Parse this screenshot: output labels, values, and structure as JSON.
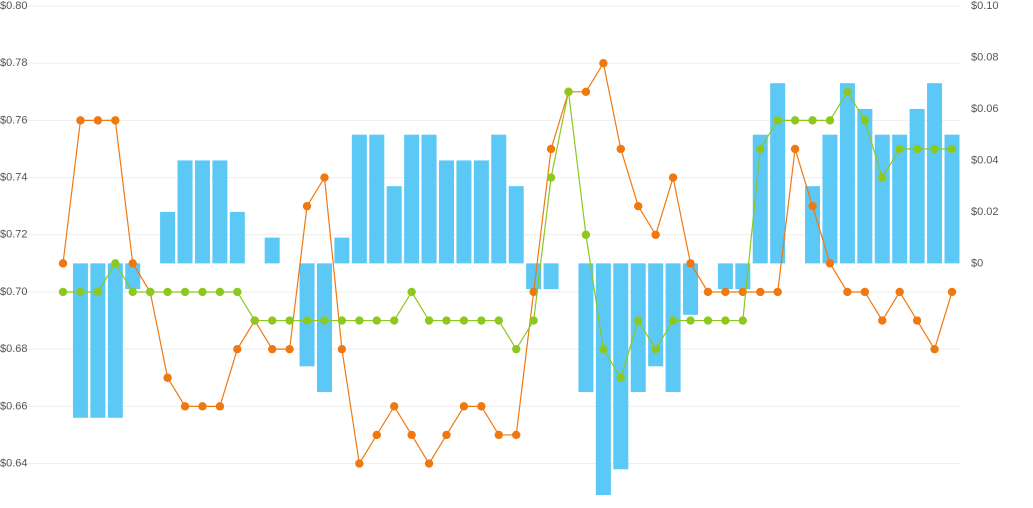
{
  "chart_data": {
    "type": "combo",
    "categories": [
      null,
      null,
      null,
      null,
      null,
      null,
      null,
      null,
      null,
      null,
      null,
      null,
      null,
      null,
      null,
      null,
      null,
      null,
      null,
      null,
      null,
      null,
      null,
      null,
      null,
      null,
      null,
      null,
      null,
      null,
      null,
      null,
      null,
      null,
      null,
      null,
      null,
      null,
      null,
      null,
      null,
      null,
      null,
      null,
      null,
      null,
      null,
      null,
      null,
      null,
      null,
      null
    ],
    "ylim": [
      0.629,
      0.8
    ],
    "yticks": [
      {
        "value": 0.64,
        "label": "$0.64"
      },
      {
        "value": 0.66,
        "label": "$0.66"
      },
      {
        "value": 0.68,
        "label": "$0.68"
      },
      {
        "value": 0.7,
        "label": "$0.70"
      },
      {
        "value": 0.72,
        "label": "$0.72"
      },
      {
        "value": 0.74,
        "label": "$0.74"
      },
      {
        "value": 0.76,
        "label": "$0.76"
      },
      {
        "value": 0.78,
        "label": "$0.78"
      },
      {
        "value": 0.8,
        "label": "$0.80"
      }
    ],
    "y2lim": [
      -0.09,
      0.1
    ],
    "y2ticks": [
      {
        "value": 0,
        "label": "$0"
      },
      {
        "value": 0.02,
        "label": "$0.02"
      },
      {
        "value": 0.04,
        "label": "$0.04"
      },
      {
        "value": 0.06,
        "label": "$0.06"
      },
      {
        "value": 0.08,
        "label": "$0.08"
      },
      {
        "value": 0.1,
        "label": "$0.10"
      }
    ],
    "grid": true,
    "series": [
      {
        "type": "bar",
        "axis": "y2",
        "color": "#5bc8f5",
        "values": [
          0,
          -0.06,
          -0.06,
          -0.06,
          -0.01,
          0,
          0.02,
          0.04,
          0.04,
          0.04,
          0.02,
          0,
          0.01,
          0,
          -0.04,
          -0.05,
          0.01,
          0.05,
          0.05,
          0.03,
          0.05,
          0.05,
          0.04,
          0.04,
          0.04,
          0.05,
          0.03,
          -0.01,
          -0.01,
          0,
          -0.05,
          -0.09,
          -0.08,
          -0.05,
          -0.04,
          -0.05,
          -0.02,
          0,
          -0.01,
          -0.01,
          0.05,
          0.07,
          0,
          0.03,
          0.05,
          0.07,
          0.06,
          0.05,
          0.05,
          0.06,
          0.07,
          0.05
        ]
      },
      {
        "type": "line",
        "color": "#f07810",
        "values": [
          0.71,
          0.76,
          0.76,
          0.76,
          0.71,
          0.7,
          0.67,
          0.66,
          0.66,
          0.66,
          0.68,
          0.69,
          0.68,
          0.68,
          0.73,
          0.74,
          0.68,
          0.64,
          0.65,
          0.66,
          0.65,
          0.64,
          0.65,
          0.66,
          0.66,
          0.65,
          0.65,
          0.7,
          0.75,
          0.77,
          0.77,
          0.78,
          0.75,
          0.73,
          0.72,
          0.74,
          0.71,
          0.7,
          0.7,
          0.7,
          0.7,
          0.7,
          0.75,
          0.73,
          0.71,
          0.7,
          0.7,
          0.69,
          0.7,
          0.69,
          0.68,
          0.7
        ]
      },
      {
        "type": "line",
        "color": "#8cc81e",
        "values": [
          0.7,
          0.7,
          0.7,
          0.71,
          0.7,
          0.7,
          0.7,
          0.7,
          0.7,
          0.7,
          0.7,
          0.69,
          0.69,
          0.69,
          0.69,
          0.69,
          0.69,
          0.69,
          0.69,
          0.69,
          0.7,
          0.69,
          0.69,
          0.69,
          0.69,
          0.69,
          0.68,
          0.69,
          0.74,
          0.77,
          0.72,
          0.68,
          0.67,
          0.69,
          0.68,
          0.69,
          0.69,
          0.69,
          0.69,
          0.69,
          0.75,
          0.76,
          0.76,
          0.76,
          0.76,
          0.77,
          0.76,
          0.74,
          0.75,
          0.75,
          0.75,
          0.75
        ]
      }
    ]
  }
}
